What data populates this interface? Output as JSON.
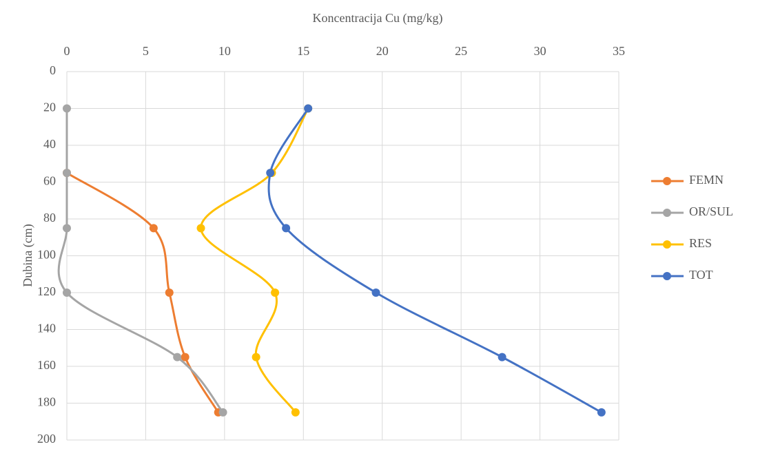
{
  "chart_data": {
    "type": "line",
    "x_title": "Koncentracija Cu (mg/kg)",
    "y_title": "Dubina (cm)",
    "depths": [
      20,
      55,
      85,
      120,
      155,
      185
    ],
    "series": [
      {
        "name": "FEMN",
        "color": "#ed7d31",
        "values": [
          null,
          0,
          5.5,
          6.5,
          7.5,
          9.6
        ]
      },
      {
        "name": "OR/SUL",
        "color": "#a5a5a5",
        "values": [
          0,
          0,
          0,
          0,
          7.0,
          9.9
        ]
      },
      {
        "name": "RES",
        "color": "#ffc000",
        "values": [
          15.3,
          13.0,
          8.5,
          13.2,
          12.0,
          14.5
        ]
      },
      {
        "name": "TOT",
        "color": "#4472c4",
        "values": [
          15.3,
          12.9,
          13.9,
          19.6,
          27.6,
          33.9
        ]
      }
    ],
    "xlim": [
      0,
      35
    ],
    "xticks": [
      0,
      5,
      10,
      15,
      20,
      25,
      30,
      35
    ],
    "ylim": [
      0,
      200
    ],
    "yticks": [
      0,
      20,
      40,
      60,
      80,
      100,
      120,
      140,
      160,
      180,
      200
    ],
    "y_inverted": true,
    "x_axis_top": true,
    "grid": true,
    "smooth": true,
    "legend": "right"
  }
}
